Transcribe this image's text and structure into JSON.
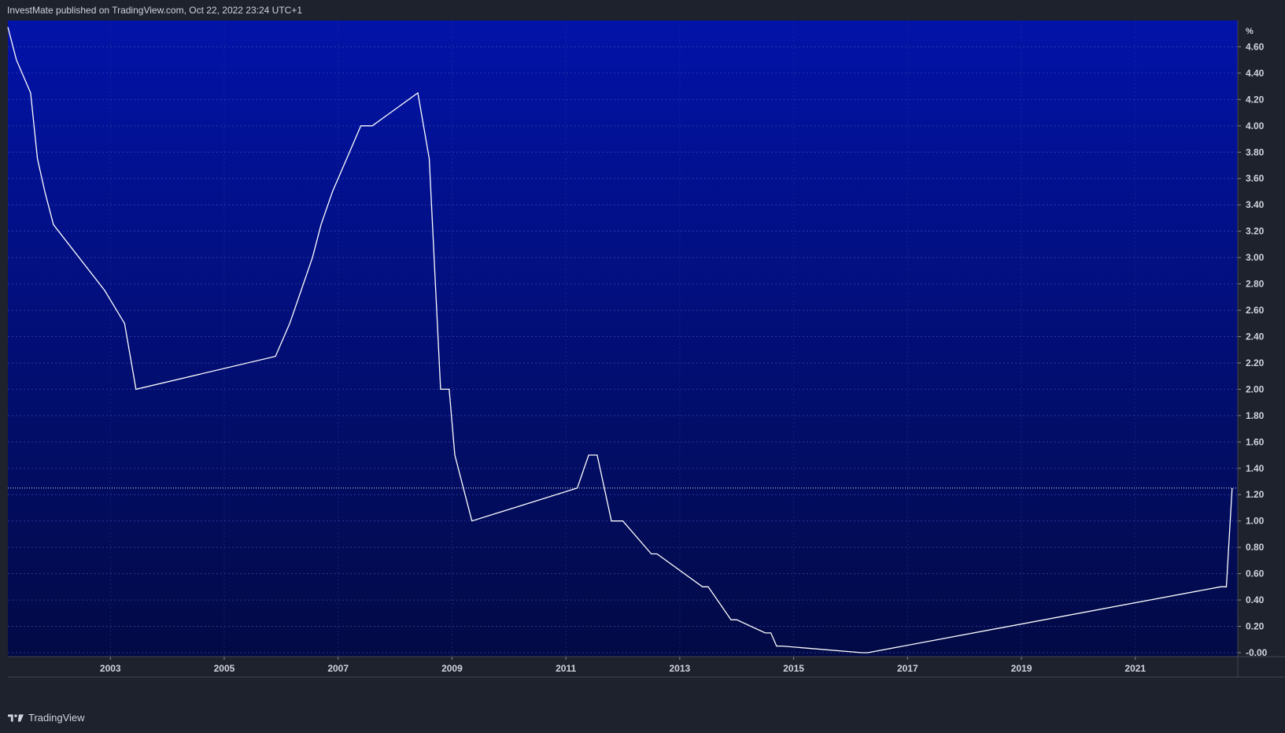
{
  "header": {
    "published_line": "InvestMate published on TradingView.com, Oct 22, 2022 23:24 UTC+1"
  },
  "footer": {
    "brand": "TradingView",
    "logo_icon": "tradingview-logo-icon"
  },
  "colors": {
    "page_background": "#1e222d",
    "plot_top": "#0213a8",
    "plot_bottom": "#020a45",
    "line": "#ffffff",
    "grid": "#3a4aa8",
    "axis_text": "#d1d4dc"
  },
  "chart_data": {
    "type": "line",
    "title": "",
    "xlabel": "",
    "ylabel": "",
    "y_unit_label": "%",
    "xlim": [
      2001.2,
      2022.8
    ],
    "ylim": [
      -0.03,
      4.8
    ],
    "grid": true,
    "step": true,
    "x_ticks": [
      "2003",
      "2005",
      "2007",
      "2009",
      "2011",
      "2013",
      "2015",
      "2017",
      "2019",
      "2021"
    ],
    "y_ticks": [
      "-0.00",
      "0.20",
      "0.40",
      "0.60",
      "0.80",
      "1.00",
      "1.20",
      "1.40",
      "1.60",
      "1.80",
      "2.00",
      "2.20",
      "2.40",
      "2.60",
      "2.80",
      "3.00",
      "3.20",
      "3.40",
      "3.60",
      "3.80",
      "4.00",
      "4.20",
      "4.40",
      "4.60"
    ],
    "current_value": 1.25,
    "series": [
      {
        "x": [
          2001.2,
          2001.35,
          2001.6,
          2001.72,
          2001.85,
          2002.0,
          2002.9,
          2003.25,
          2003.45,
          2005.9,
          2006.15,
          2006.35,
          2006.55,
          2006.7,
          2006.9,
          2007.15,
          2007.4,
          2007.6,
          2008.4,
          2008.6,
          2008.8,
          2008.95,
          2009.05,
          2009.35,
          2011.2,
          2011.4,
          2011.55,
          2011.8,
          2012.0,
          2012.5,
          2012.6,
          2013.4,
          2013.5,
          2013.9,
          2014.0,
          2014.5,
          2014.6,
          2014.7,
          2014.8,
          2016.2,
          2016.3,
          2022.5,
          2022.6,
          2022.7
        ],
        "y": [
          4.75,
          4.5,
          4.25,
          3.75,
          3.5,
          3.25,
          2.75,
          2.5,
          2.0,
          2.25,
          2.5,
          2.75,
          3.0,
          3.25,
          3.5,
          3.75,
          4.0,
          4.0,
          4.25,
          3.75,
          2.0,
          2.0,
          1.5,
          1.0,
          1.25,
          1.5,
          1.5,
          1.0,
          1.0,
          0.75,
          0.75,
          0.5,
          0.5,
          0.25,
          0.25,
          0.15,
          0.15,
          0.05,
          0.05,
          0.0,
          0.0,
          0.5,
          0.5,
          1.25
        ]
      }
    ]
  }
}
